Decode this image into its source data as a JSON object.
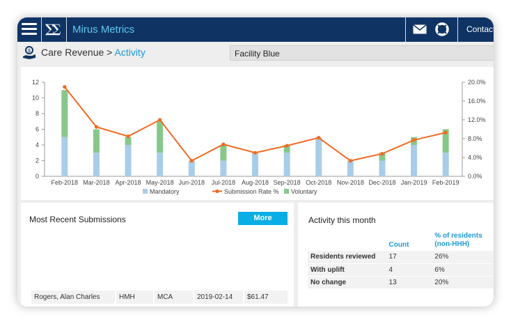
{
  "app": {
    "brand": "Mirus Metrics",
    "logo_text": "MM",
    "contact_label": "Contact",
    "colors": {
      "navbar": "#0f3464",
      "brand_text": "#5cc8f0",
      "accent": "#1c9ad6",
      "button": "#0aaee6"
    },
    "icons": [
      "hamburger-icon",
      "mail-icon",
      "lifebuoy-icon",
      "care-revenue-icon"
    ]
  },
  "header": {
    "breadcrumb_root": "Care Revenue",
    "breadcrumb_sep": ">",
    "breadcrumb_current": "Activity",
    "facility_selected": "Facility Blue"
  },
  "chart_data": {
    "type": "bar",
    "categories": [
      "Feb-2018",
      "Mar-2018",
      "Apr-2018",
      "May-2018",
      "Jun-2018",
      "Jul-2018",
      "Aug-2018",
      "Sep-2018",
      "Oct-2018",
      "Nov-2018",
      "Dec-2018",
      "Jan-2019",
      "Feb-2019"
    ],
    "left_ticks": [
      "0",
      "2",
      "4",
      "6",
      "8",
      "10",
      "12"
    ],
    "right_ticks": [
      "0.0%",
      "4.0%",
      "8.0%",
      "12.0%",
      "16.0%",
      "20.0%"
    ],
    "ylim": [
      0,
      12
    ],
    "y2lim": [
      0,
      20
    ],
    "stacked": true,
    "series": [
      {
        "name": "Mandatory",
        "type": "bar",
        "color": "#a9cde8",
        "values": [
          5,
          3,
          4,
          3,
          2,
          2,
          3,
          3,
          5,
          2,
          2,
          4,
          3
        ]
      },
      {
        "name": "Voluntary",
        "type": "bar",
        "color": "#86c88a",
        "values": [
          6,
          3,
          1,
          4,
          0,
          2,
          0,
          1,
          0,
          0,
          1,
          1,
          3
        ]
      },
      {
        "name": "Submission Rate %",
        "type": "line",
        "axis": "right",
        "color": "#f06a22",
        "values": [
          19.0,
          10.5,
          8.5,
          12.0,
          3.3,
          6.8,
          5.0,
          6.5,
          8.2,
          3.3,
          4.8,
          7.7,
          9.3
        ]
      }
    ],
    "legend_position": "bottom"
  },
  "submissions": {
    "title": "Most Recent Submissions",
    "more_label": "More",
    "rows": [
      {
        "name": "Rogers, Alan Charles",
        "type": "HMH",
        "code": "MCA",
        "date": "2019-02-14",
        "amount": "$61.47"
      }
    ]
  },
  "activity": {
    "title": "Activity this month",
    "headers": [
      "",
      "Count",
      "% of residents (non-HHH)"
    ],
    "rows": [
      {
        "label": "Residents reviewed",
        "count": "17",
        "pct": "26%"
      },
      {
        "label": "With uplift",
        "count": "4",
        "pct": "6%"
      },
      {
        "label": "No change",
        "count": "13",
        "pct": "20%"
      }
    ]
  }
}
